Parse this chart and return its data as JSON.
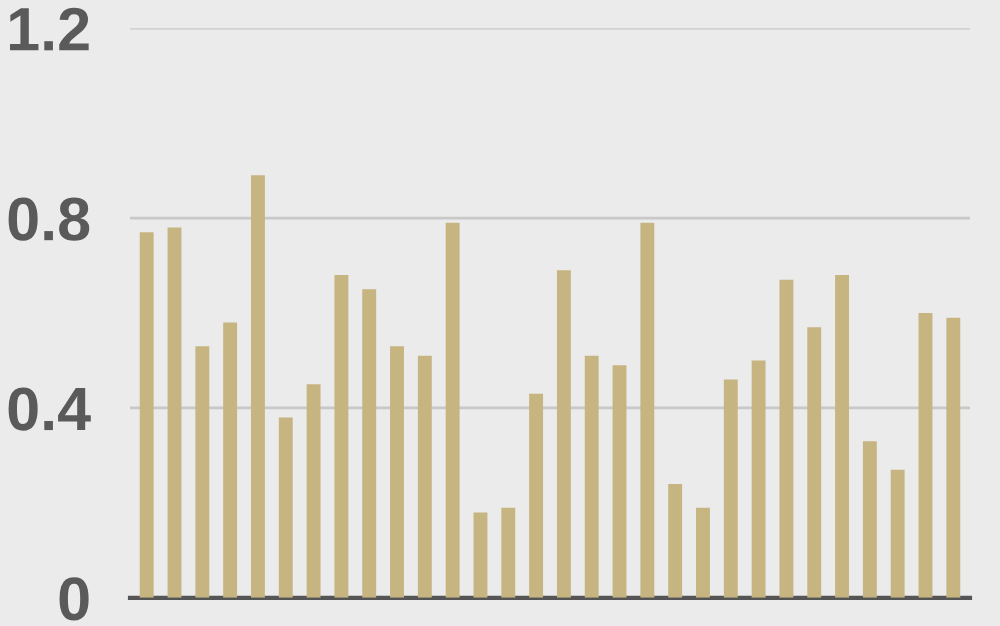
{
  "chart_data": {
    "type": "bar",
    "categories": [
      null,
      null,
      null,
      null,
      null,
      null,
      null,
      null,
      null,
      null,
      null,
      null,
      null,
      null,
      null,
      null,
      null,
      null,
      null,
      null,
      null,
      null,
      null,
      null,
      null,
      null,
      null,
      null,
      null,
      null
    ],
    "values": [
      0.77,
      0.78,
      0.53,
      0.58,
      0.89,
      0.38,
      0.45,
      0.68,
      0.65,
      0.53,
      0.51,
      0.79,
      0.18,
      0.19,
      0.43,
      0.69,
      0.51,
      0.49,
      0.79,
      0.24,
      0.19,
      0.46,
      0.5,
      0.67,
      0.57,
      0.68,
      0.33,
      0.27,
      0.6,
      0.59
    ],
    "color": "#c6b580",
    "ylim": [
      0,
      1.2
    ],
    "yticks": [
      0,
      0.4,
      0.8,
      1.2
    ],
    "grid": "y"
  }
}
